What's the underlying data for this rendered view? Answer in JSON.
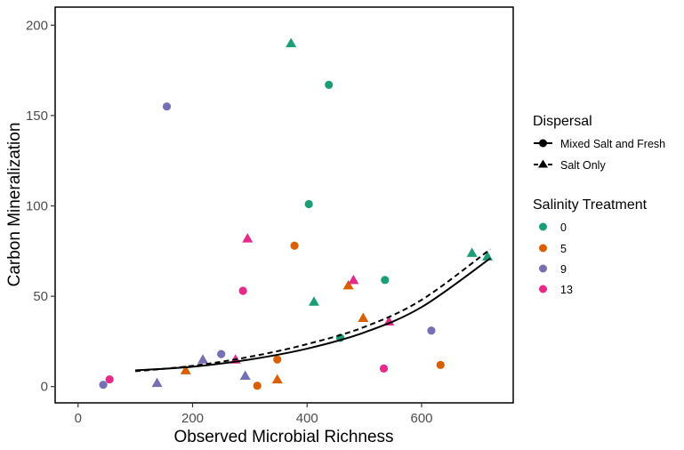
{
  "chart_data": {
    "type": "scatter",
    "title": "",
    "xlabel": "Observed Microbial Richness",
    "ylabel": "Carbon Mineralization",
    "xlim": [
      -40,
      760
    ],
    "ylim": [
      -9,
      210
    ],
    "x_ticks": [
      0,
      200,
      400,
      600
    ],
    "y_ticks": [
      0,
      50,
      100,
      150,
      200
    ],
    "grid": false,
    "legend_position": "right",
    "legends": {
      "dispersal": {
        "title": "Dispersal",
        "entries": [
          {
            "key": "mixed",
            "label": "Mixed Salt and Fresh",
            "marker": "circle",
            "line": "solid"
          },
          {
            "key": "salt",
            "label": "Salt Only",
            "marker": "triangle",
            "line": "dashed"
          }
        ]
      },
      "salinity": {
        "title": "Salinity Treatment",
        "entries": [
          {
            "key": "0",
            "label": "0",
            "color": "#1b9e77"
          },
          {
            "key": "5",
            "label": "5",
            "color": "#d95f02"
          },
          {
            "key": "9",
            "label": "9",
            "color": "#7570b3"
          },
          {
            "key": "13",
            "label": "13",
            "color": "#e7298a"
          }
        ]
      }
    },
    "points": [
      {
        "x": 372,
        "y": 190,
        "salinity": "0",
        "dispersal": "salt"
      },
      {
        "x": 438,
        "y": 167,
        "salinity": "0",
        "dispersal": "mixed"
      },
      {
        "x": 403,
        "y": 101,
        "salinity": "0",
        "dispersal": "mixed"
      },
      {
        "x": 688,
        "y": 74,
        "salinity": "0",
        "dispersal": "salt"
      },
      {
        "x": 715,
        "y": 72,
        "salinity": "0",
        "dispersal": "salt"
      },
      {
        "x": 536,
        "y": 59,
        "salinity": "0",
        "dispersal": "mixed"
      },
      {
        "x": 412,
        "y": 47,
        "salinity": "0",
        "dispersal": "salt"
      },
      {
        "x": 458,
        "y": 27,
        "salinity": "0",
        "dispersal": "mixed"
      },
      {
        "x": 378,
        "y": 78,
        "salinity": "5",
        "dispersal": "mixed"
      },
      {
        "x": 472,
        "y": 56,
        "salinity": "5",
        "dispersal": "salt"
      },
      {
        "x": 498,
        "y": 38,
        "salinity": "5",
        "dispersal": "salt"
      },
      {
        "x": 348,
        "y": 15,
        "salinity": "5",
        "dispersal": "mixed"
      },
      {
        "x": 633,
        "y": 12,
        "salinity": "5",
        "dispersal": "mixed"
      },
      {
        "x": 188,
        "y": 9,
        "salinity": "5",
        "dispersal": "salt"
      },
      {
        "x": 348,
        "y": 4,
        "salinity": "5",
        "dispersal": "salt"
      },
      {
        "x": 313,
        "y": 0.5,
        "salinity": "5",
        "dispersal": "mixed"
      },
      {
        "x": 155,
        "y": 155,
        "salinity": "9",
        "dispersal": "mixed"
      },
      {
        "x": 617,
        "y": 31,
        "salinity": "9",
        "dispersal": "mixed"
      },
      {
        "x": 250,
        "y": 18,
        "salinity": "9",
        "dispersal": "mixed"
      },
      {
        "x": 218,
        "y": 15,
        "salinity": "9",
        "dispersal": "salt"
      },
      {
        "x": 292,
        "y": 6,
        "salinity": "9",
        "dispersal": "salt"
      },
      {
        "x": 138,
        "y": 2,
        "salinity": "9",
        "dispersal": "salt"
      },
      {
        "x": 44,
        "y": 1,
        "salinity": "9",
        "dispersal": "mixed"
      },
      {
        "x": 296,
        "y": 82,
        "salinity": "13",
        "dispersal": "salt"
      },
      {
        "x": 481,
        "y": 59,
        "salinity": "13",
        "dispersal": "salt"
      },
      {
        "x": 288,
        "y": 53,
        "salinity": "13",
        "dispersal": "mixed"
      },
      {
        "x": 543,
        "y": 36,
        "salinity": "13",
        "dispersal": "salt"
      },
      {
        "x": 275,
        "y": 15,
        "salinity": "13",
        "dispersal": "salt"
      },
      {
        "x": 534,
        "y": 10,
        "salinity": "13",
        "dispersal": "mixed"
      },
      {
        "x": 55,
        "y": 4,
        "salinity": "13",
        "dispersal": "mixed"
      }
    ],
    "fits": [
      {
        "dispersal": "mixed",
        "line": "solid",
        "x": [
          100,
          200,
          300,
          400,
          500,
          600,
          720
        ],
        "y": [
          9,
          11,
          15,
          21,
          30,
          44,
          71
        ]
      },
      {
        "dispersal": "salt",
        "line": "dashed",
        "x": [
          100,
          200,
          300,
          400,
          500,
          600,
          720
        ],
        "y": [
          8.5,
          11.5,
          16.5,
          23.5,
          33,
          48,
          76
        ]
      }
    ]
  }
}
